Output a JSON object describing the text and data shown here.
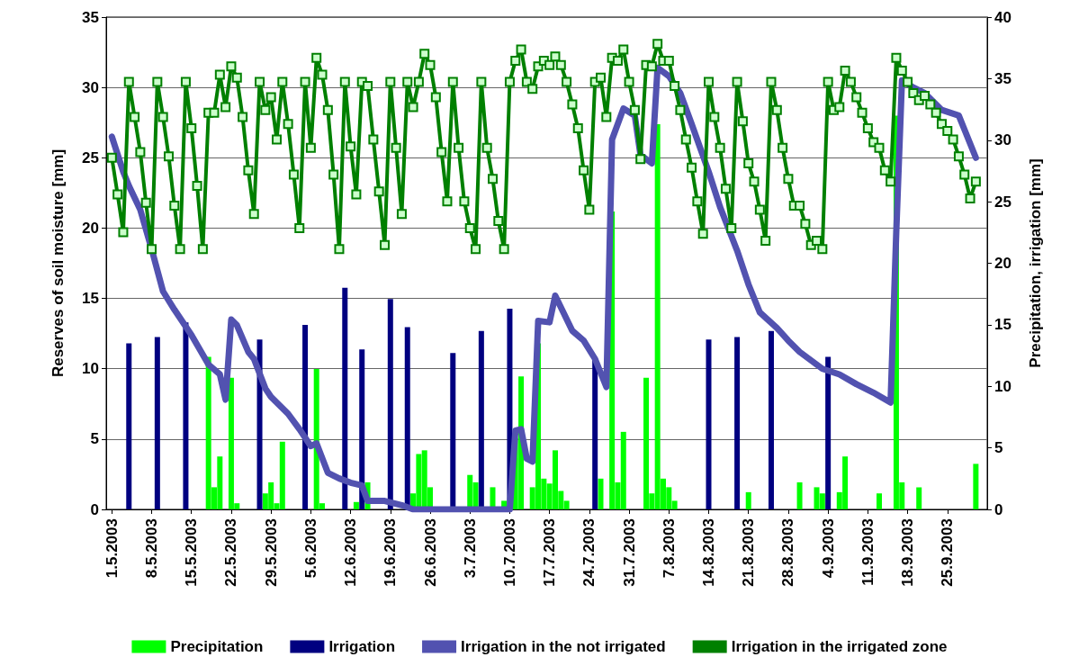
{
  "chart_data": {
    "type": "bar",
    "ylabel": "Reserves of soil moisture [mm]",
    "y2label": "Precipitation, irrigation [mm]",
    "xlim": [
      "2003-04-30",
      "2003-10-02"
    ],
    "xticks": [
      {
        "value": "2003-05-01",
        "label": "1.5.2003"
      },
      {
        "value": "2003-05-08",
        "label": "8.5.2003"
      },
      {
        "value": "2003-05-15",
        "label": "15.5.2003"
      },
      {
        "value": "2003-05-22",
        "label": "22.5.2003"
      },
      {
        "value": "2003-05-29",
        "label": "29.5.2003"
      },
      {
        "value": "2003-06-05",
        "label": "5.6.2003"
      },
      {
        "value": "2003-06-12",
        "label": "12.6.2003"
      },
      {
        "value": "2003-06-19",
        "label": "19.6.2003"
      },
      {
        "value": "2003-06-26",
        "label": "26.6.2003"
      },
      {
        "value": "2003-07-03",
        "label": "3.7.2003"
      },
      {
        "value": "2003-07-10",
        "label": "10.7.2003"
      },
      {
        "value": "2003-07-17",
        "label": "17.7.2003"
      },
      {
        "value": "2003-07-24",
        "label": "24.7.2003"
      },
      {
        "value": "2003-07-31",
        "label": "31.7.2003"
      },
      {
        "value": "2003-08-07",
        "label": "7.8.2003"
      },
      {
        "value": "2003-08-14",
        "label": "14.8.2003"
      },
      {
        "value": "2003-08-21",
        "label": "21.8.2003"
      },
      {
        "value": "2003-08-28",
        "label": "28.8.2003"
      },
      {
        "value": "2003-09-04",
        "label": "4.9.2003"
      },
      {
        "value": "2003-09-11",
        "label": "11.9.2003"
      },
      {
        "value": "2003-09-18",
        "label": "18.9.2003"
      },
      {
        "value": "2003-09-25",
        "label": "25.9.2003"
      }
    ],
    "ylim": [
      0,
      35
    ],
    "yticks": [
      0,
      5,
      10,
      15,
      20,
      25,
      30,
      35
    ],
    "y2lim": [
      0,
      40
    ],
    "y2ticks": [
      0,
      5,
      10,
      15,
      20,
      25,
      30,
      35,
      40
    ],
    "grid": "y",
    "legend": "bottom",
    "x": [
      "2003-05-01",
      "2003-05-02",
      "2003-05-03",
      "2003-05-04",
      "2003-05-05",
      "2003-05-06",
      "2003-05-07",
      "2003-05-08",
      "2003-05-09",
      "2003-05-10",
      "2003-05-11",
      "2003-05-12",
      "2003-05-13",
      "2003-05-14",
      "2003-05-15",
      "2003-05-16",
      "2003-05-17",
      "2003-05-18",
      "2003-05-19",
      "2003-05-20",
      "2003-05-21",
      "2003-05-22",
      "2003-05-23",
      "2003-05-24",
      "2003-05-25",
      "2003-05-26",
      "2003-05-27",
      "2003-05-28",
      "2003-05-29",
      "2003-05-30",
      "2003-05-31",
      "2003-06-01",
      "2003-06-02",
      "2003-06-03",
      "2003-06-04",
      "2003-06-05",
      "2003-06-06",
      "2003-06-07",
      "2003-06-08",
      "2003-06-09",
      "2003-06-10",
      "2003-06-11",
      "2003-06-12",
      "2003-06-13",
      "2003-06-14",
      "2003-06-15",
      "2003-06-16",
      "2003-06-17",
      "2003-06-18",
      "2003-06-19",
      "2003-06-20",
      "2003-06-21",
      "2003-06-22",
      "2003-06-23",
      "2003-06-24",
      "2003-06-25",
      "2003-06-26",
      "2003-06-27",
      "2003-06-28",
      "2003-06-29",
      "2003-06-30",
      "2003-07-01",
      "2003-07-02",
      "2003-07-03",
      "2003-07-04",
      "2003-07-05",
      "2003-07-06",
      "2003-07-07",
      "2003-07-08",
      "2003-07-09",
      "2003-07-10",
      "2003-07-11",
      "2003-07-12",
      "2003-07-13",
      "2003-07-14",
      "2003-07-15",
      "2003-07-16",
      "2003-07-17",
      "2003-07-18",
      "2003-07-19",
      "2003-07-20",
      "2003-07-21",
      "2003-07-22",
      "2003-07-23",
      "2003-07-24",
      "2003-07-25",
      "2003-07-26",
      "2003-07-27",
      "2003-07-28",
      "2003-07-29",
      "2003-07-30",
      "2003-07-31",
      "2003-08-01",
      "2003-08-02",
      "2003-08-03",
      "2003-08-04",
      "2003-08-05",
      "2003-08-06",
      "2003-08-07",
      "2003-08-08",
      "2003-08-09",
      "2003-08-10",
      "2003-08-11",
      "2003-08-12",
      "2003-08-13",
      "2003-08-14",
      "2003-08-15",
      "2003-08-16",
      "2003-08-17",
      "2003-08-18",
      "2003-08-19",
      "2003-08-20",
      "2003-08-21",
      "2003-08-22",
      "2003-08-23",
      "2003-08-24",
      "2003-08-25",
      "2003-08-26",
      "2003-08-27",
      "2003-08-28",
      "2003-08-29",
      "2003-08-30",
      "2003-08-31",
      "2003-09-01",
      "2003-09-02",
      "2003-09-03",
      "2003-09-04",
      "2003-09-05",
      "2003-09-06",
      "2003-09-07",
      "2003-09-08",
      "2003-09-09",
      "2003-09-10",
      "2003-09-11",
      "2003-09-12",
      "2003-09-13",
      "2003-09-14",
      "2003-09-15",
      "2003-09-16",
      "2003-09-17",
      "2003-09-18",
      "2003-09-19",
      "2003-09-20",
      "2003-09-21",
      "2003-09-22",
      "2003-09-23",
      "2003-09-24",
      "2003-09-25",
      "2003-09-26",
      "2003-09-27",
      "2003-09-28",
      "2003-09-29",
      "2003-09-30"
    ],
    "series": [
      {
        "name": "Precipitation",
        "axis": "y2",
        "color": "#00ff00",
        "x": [
          "2003-05-18",
          "2003-05-19",
          "2003-05-20",
          "2003-05-22",
          "2003-05-23",
          "2003-05-28",
          "2003-05-29",
          "2003-05-30",
          "2003-05-31",
          "2003-06-06",
          "2003-06-07",
          "2003-06-13",
          "2003-06-15",
          "2003-06-23",
          "2003-06-24",
          "2003-06-25",
          "2003-06-26",
          "2003-07-03",
          "2003-07-04",
          "2003-07-07",
          "2003-07-09",
          "2003-07-11",
          "2003-07-12",
          "2003-07-14",
          "2003-07-15",
          "2003-07-16",
          "2003-07-17",
          "2003-07-18",
          "2003-07-19",
          "2003-07-20",
          "2003-07-26",
          "2003-07-28",
          "2003-07-29",
          "2003-07-30",
          "2003-08-03",
          "2003-08-04",
          "2003-08-05",
          "2003-08-06",
          "2003-08-07",
          "2003-08-08",
          "2003-08-21",
          "2003-08-30",
          "2003-09-02",
          "2003-09-03",
          "2003-09-06",
          "2003-09-07",
          "2003-09-13",
          "2003-09-16",
          "2003-09-17",
          "2003-09-20",
          "2003-09-30"
        ],
        "values": [
          12.4,
          1.8,
          4.3,
          10.7,
          0.5,
          1.3,
          2.2,
          0.5,
          5.5,
          11.4,
          0.5,
          0.6,
          2.2,
          1.3,
          4.5,
          4.8,
          1.8,
          2.8,
          2.2,
          1.8,
          0.7,
          5.8,
          10.8,
          1.8,
          13.5,
          2.5,
          2.1,
          4.8,
          1.5,
          0.7,
          2.5,
          24.2,
          2.2,
          6.3,
          10.7,
          1.3,
          31.3,
          2.5,
          1.8,
          0.7,
          1.4,
          2.2,
          1.8,
          1.3,
          1.4,
          4.3,
          1.3,
          32.0,
          2.2,
          1.8,
          3.7
        ]
      },
      {
        "name": "Irrigation",
        "axis": "y2",
        "color": "#000080",
        "x": [
          "2003-05-04",
          "2003-05-09",
          "2003-05-14",
          "2003-05-27",
          "2003-06-04",
          "2003-06-11",
          "2003-06-14",
          "2003-06-19",
          "2003-06-22",
          "2003-06-30",
          "2003-07-05",
          "2003-07-10",
          "2003-07-25",
          "2003-08-14",
          "2003-08-19",
          "2003-08-25",
          "2003-09-04"
        ],
        "values": [
          13.5,
          14.0,
          15.2,
          13.8,
          15.0,
          18.0,
          13.0,
          17.1,
          14.8,
          12.7,
          14.5,
          16.3,
          12.3,
          13.8,
          14.0,
          14.5,
          12.4
        ]
      },
      {
        "name": "Irrigation in the not irrigated",
        "type": "line",
        "color": "#5252b0",
        "marker": "none",
        "x": [
          "2003-05-01",
          "2003-05-03",
          "2003-05-04",
          "2003-05-06",
          "2003-05-08",
          "2003-05-10",
          "2003-05-12",
          "2003-05-15",
          "2003-05-18",
          "2003-05-20",
          "2003-05-21",
          "2003-05-22",
          "2003-05-23",
          "2003-05-25",
          "2003-05-26",
          "2003-05-28",
          "2003-05-29",
          "2003-06-01",
          "2003-06-03",
          "2003-06-05",
          "2003-06-06",
          "2003-06-08",
          "2003-06-10",
          "2003-06-12",
          "2003-06-14",
          "2003-06-15",
          "2003-06-18",
          "2003-06-21",
          "2003-06-23",
          "2003-07-10",
          "2003-07-11",
          "2003-07-12",
          "2003-07-13",
          "2003-07-14",
          "2003-07-15",
          "2003-07-17",
          "2003-07-18",
          "2003-07-21",
          "2003-07-23",
          "2003-07-25",
          "2003-07-27",
          "2003-07-28",
          "2003-07-30",
          "2003-08-01",
          "2003-08-02",
          "2003-08-04",
          "2003-08-05",
          "2003-08-07",
          "2003-08-09",
          "2003-08-11",
          "2003-08-14",
          "2003-08-16",
          "2003-08-19",
          "2003-08-21",
          "2003-08-23",
          "2003-08-26",
          "2003-08-28",
          "2003-08-30",
          "2003-09-03",
          "2003-09-06",
          "2003-09-09",
          "2003-09-12",
          "2003-09-15",
          "2003-09-16",
          "2003-09-17",
          "2003-09-19",
          "2003-09-21",
          "2003-09-24",
          "2003-09-27",
          "2003-09-28",
          "2003-09-30"
        ],
        "values": [
          26.5,
          24.0,
          23.0,
          21.3,
          18.5,
          15.5,
          14.2,
          12.4,
          10.3,
          9.6,
          7.8,
          13.5,
          13.1,
          11.2,
          10.7,
          8.6,
          8.0,
          6.8,
          5.7,
          4.5,
          4.7,
          2.6,
          2.2,
          1.9,
          1.7,
          0.6,
          0.6,
          0.3,
          0,
          0,
          5.6,
          5.7,
          3.6,
          3.4,
          13.4,
          13.3,
          15.2,
          12.7,
          12.0,
          10.7,
          8.7,
          26.3,
          28.5,
          28.0,
          25.2,
          24.6,
          31.4,
          30.8,
          29.6,
          27.4,
          24.0,
          21.5,
          18.4,
          16.0,
          14.0,
          12.9,
          12.0,
          11.2,
          10.0,
          9.6,
          8.9,
          8.3,
          7.6,
          19.7,
          30.5,
          30.0,
          29.6,
          28.4,
          28.0,
          27.0,
          25.0
        ]
      },
      {
        "name": "Irrigation in the irrigated zone",
        "type": "line",
        "color": "#008000",
        "marker": "square",
        "values": [
          25.0,
          22.4,
          19.7,
          30.4,
          27.9,
          25.4,
          21.8,
          18.5,
          30.4,
          27.9,
          25.1,
          21.6,
          18.5,
          30.4,
          27.1,
          23.0,
          18.5,
          28.2,
          28.2,
          30.9,
          28.6,
          31.5,
          30.7,
          27.9,
          24.1,
          21.0,
          30.4,
          28.4,
          29.3,
          26.3,
          30.4,
          27.4,
          23.8,
          20.0,
          30.4,
          25.7,
          32.1,
          30.9,
          28.4,
          23.8,
          18.5,
          30.4,
          25.8,
          22.4,
          30.4,
          30.1,
          26.3,
          22.6,
          18.8,
          30.4,
          25.7,
          21.0,
          30.4,
          28.6,
          30.4,
          32.4,
          31.6,
          29.3,
          25.4,
          21.9,
          30.4,
          25.7,
          21.9,
          20.0,
          18.5,
          30.4,
          25.7,
          23.5,
          20.5,
          18.5,
          30.4,
          31.9,
          32.7,
          30.4,
          29.9,
          31.5,
          31.9,
          31.6,
          32.2,
          31.6,
          30.4,
          28.8,
          27.1,
          24.1,
          21.3,
          30.4,
          30.7,
          27.9,
          32.1,
          31.9,
          32.7,
          30.4,
          28.4,
          24.9,
          31.6,
          31.5,
          33.1,
          31.9,
          31.9,
          30.1,
          28.4,
          26.3,
          24.3,
          21.9,
          19.6,
          30.4,
          27.9,
          25.7,
          22.8,
          20.0,
          30.4,
          27.6,
          24.6,
          23.3,
          21.3,
          19.1,
          30.4,
          28.4,
          25.7,
          23.5,
          21.6,
          21.6,
          20.3,
          18.8,
          19.1,
          18.5,
          30.4,
          28.4,
          28.6,
          31.2,
          30.4,
          29.3,
          28.2,
          27.1,
          26.1,
          25.7,
          24.1,
          23.3,
          32.1,
          31.2,
          30.4,
          29.6,
          29.1,
          29.4,
          28.8,
          28.2,
          27.4,
          26.9,
          26.3,
          25.1,
          23.8,
          22.1,
          23.3
        ]
      }
    ]
  }
}
